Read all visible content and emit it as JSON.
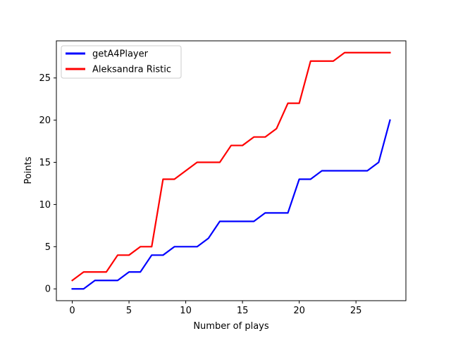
{
  "chart_data": {
    "type": "line",
    "title": "",
    "xlabel": "Number of plays",
    "ylabel": "Points",
    "xlim": [
      -1.4,
      29.4
    ],
    "ylim": [
      -1.4,
      29.4
    ],
    "xticks": [
      0,
      5,
      10,
      15,
      20,
      25
    ],
    "yticks": [
      0,
      5,
      10,
      15,
      20,
      25
    ],
    "grid": false,
    "legend_position": "top-left",
    "x": [
      0,
      1,
      2,
      3,
      4,
      5,
      6,
      7,
      8,
      9,
      10,
      11,
      12,
      13,
      14,
      15,
      16,
      17,
      18,
      19,
      20,
      21,
      22,
      23,
      24,
      25,
      26,
      27,
      28
    ],
    "series": [
      {
        "name": "getA4Player",
        "color": "#0000ff",
        "values": [
          0,
          0,
          1,
          1,
          1,
          2,
          2,
          4,
          4,
          5,
          5,
          5,
          6,
          8,
          8,
          8,
          8,
          9,
          9,
          9,
          13,
          13,
          14,
          14,
          14,
          14,
          14,
          15,
          20
        ]
      },
      {
        "name": "Aleksandra Ristic",
        "color": "#ff0000",
        "values": [
          1,
          2,
          2,
          2,
          4,
          4,
          5,
          5,
          13,
          13,
          14,
          15,
          15,
          15,
          17,
          17,
          18,
          18,
          19,
          22,
          22,
          27,
          27,
          27,
          28,
          28,
          28,
          28,
          28
        ]
      }
    ]
  }
}
